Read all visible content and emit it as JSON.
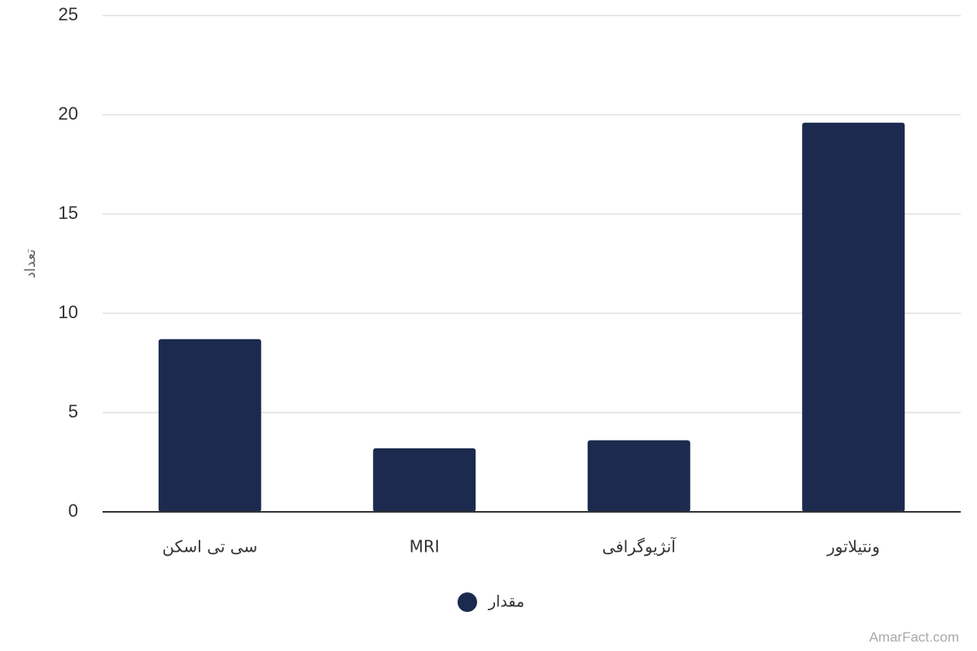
{
  "chart_data": {
    "type": "bar",
    "y_label": "تعداد",
    "categories": [
      "سی تی اسکن",
      "MRI",
      "آنژیوگرافی",
      "ونتیلاتور"
    ],
    "series": [
      {
        "name": "مقدار",
        "color": "#1b2a4e",
        "values": [
          8.7,
          3.2,
          3.6,
          19.6
        ]
      }
    ],
    "ylim": [
      0,
      25
    ],
    "yticks": [
      0,
      5,
      10,
      15,
      20,
      25
    ],
    "grid": true,
    "credit": "AmarFact.com"
  }
}
